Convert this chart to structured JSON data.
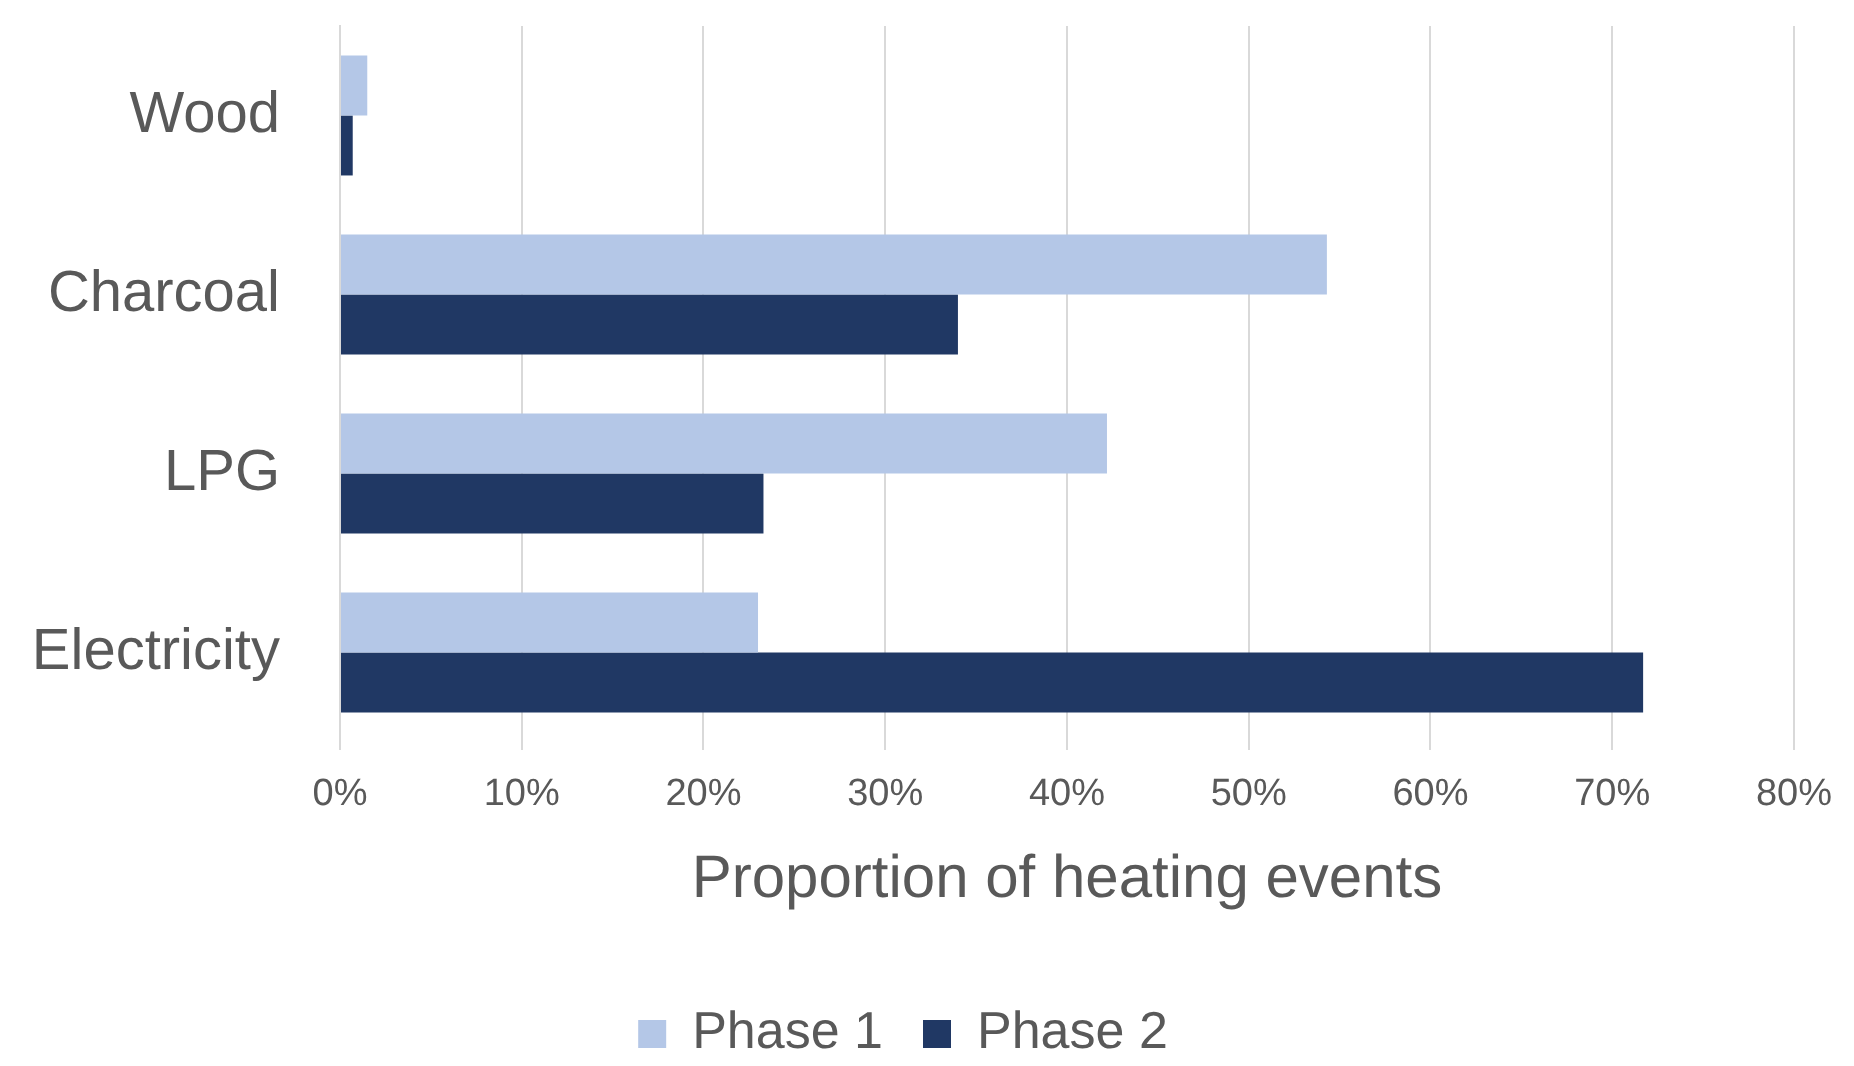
{
  "chart_data": {
    "type": "bar",
    "orientation": "horizontal",
    "xlabel": "Proportion of heating events",
    "categories": [
      "Wood",
      "Charcoal",
      "LPG",
      "Electricity"
    ],
    "series": [
      {
        "name": "Phase 1",
        "color": "#b4c7e7",
        "values": [
          1.5,
          54.3,
          42.2,
          23.0
        ]
      },
      {
        "name": "Phase 2",
        "color": "#203864",
        "values": [
          0.7,
          34.0,
          23.3,
          71.7
        ]
      }
    ],
    "xlim": [
      0,
      80
    ],
    "xticks": [
      {
        "value": 0,
        "label": "0%"
      },
      {
        "value": 10,
        "label": "10%"
      },
      {
        "value": 20,
        "label": "20%"
      },
      {
        "value": 30,
        "label": "30%"
      },
      {
        "value": 40,
        "label": "40%"
      },
      {
        "value": 50,
        "label": "50%"
      },
      {
        "value": 60,
        "label": "60%"
      },
      {
        "value": 70,
        "label": "70%"
      },
      {
        "value": 80,
        "label": "80%"
      }
    ],
    "grid": "x",
    "legend": "bottom"
  }
}
